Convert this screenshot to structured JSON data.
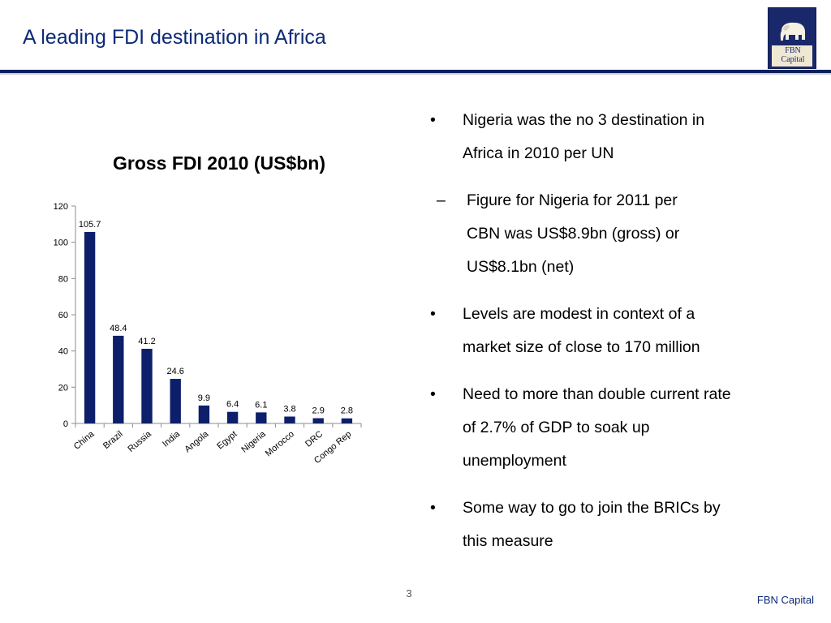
{
  "slide": {
    "title": "A leading FDI destination in Africa",
    "page_number": "3",
    "footer_brand": "FBN Capital"
  },
  "logo": {
    "line1": "FBN",
    "line2": "Capital",
    "icon": "elephant-icon",
    "colors": {
      "background": "#19286a",
      "panel": "#efe8d2"
    }
  },
  "colors": {
    "title": "#0b2a78",
    "rule": "#0b1f5c",
    "bar": "#0d1f6b"
  },
  "bullets": [
    {
      "marker": "•",
      "text_lines": [
        "Nigeria was the no 3 destination in",
        "Africa in 2010 per UN"
      ],
      "sub": [
        {
          "marker": "–",
          "text_lines": [
            "Figure for Nigeria for 2011 per",
            "CBN was US$8.9bn (gross) or",
            "US$8.1bn (net)"
          ]
        }
      ]
    },
    {
      "marker": "•",
      "text_lines": [
        "Levels are modest in context of a",
        "market size of close to 170 million"
      ],
      "sub": []
    },
    {
      "marker": "•",
      "text_lines": [
        "Need to more than double current rate",
        "of 2.7% of GDP to soak up",
        "unemployment"
      ],
      "sub": []
    },
    {
      "marker": "•",
      "text_lines": [
        "Some way to go to join the BRICs by",
        "this measure"
      ],
      "sub": []
    }
  ],
  "chart_data": {
    "type": "bar",
    "title": "Gross FDI 2010 (US$bn)",
    "xlabel": "",
    "ylabel": "",
    "categories": [
      "China",
      "Brazil",
      "Russia",
      "India",
      "Angola",
      "Egypt",
      "Nigeria",
      "Morocco",
      "DRC",
      "Congo Rep"
    ],
    "values": [
      105.7,
      48.4,
      41.2,
      24.6,
      9.9,
      6.4,
      6.1,
      3.8,
      2.9,
      2.8
    ],
    "data_labels": [
      "105.7",
      "48.4",
      "41.2",
      "24.6",
      "9.9",
      "6.4",
      "6.1",
      "3.8",
      "2.9",
      "2.8"
    ],
    "ylim": [
      0,
      120
    ],
    "yticks": [
      0,
      20,
      40,
      60,
      80,
      100,
      120
    ],
    "grid": false,
    "bar_color": "#0d1f6b"
  }
}
